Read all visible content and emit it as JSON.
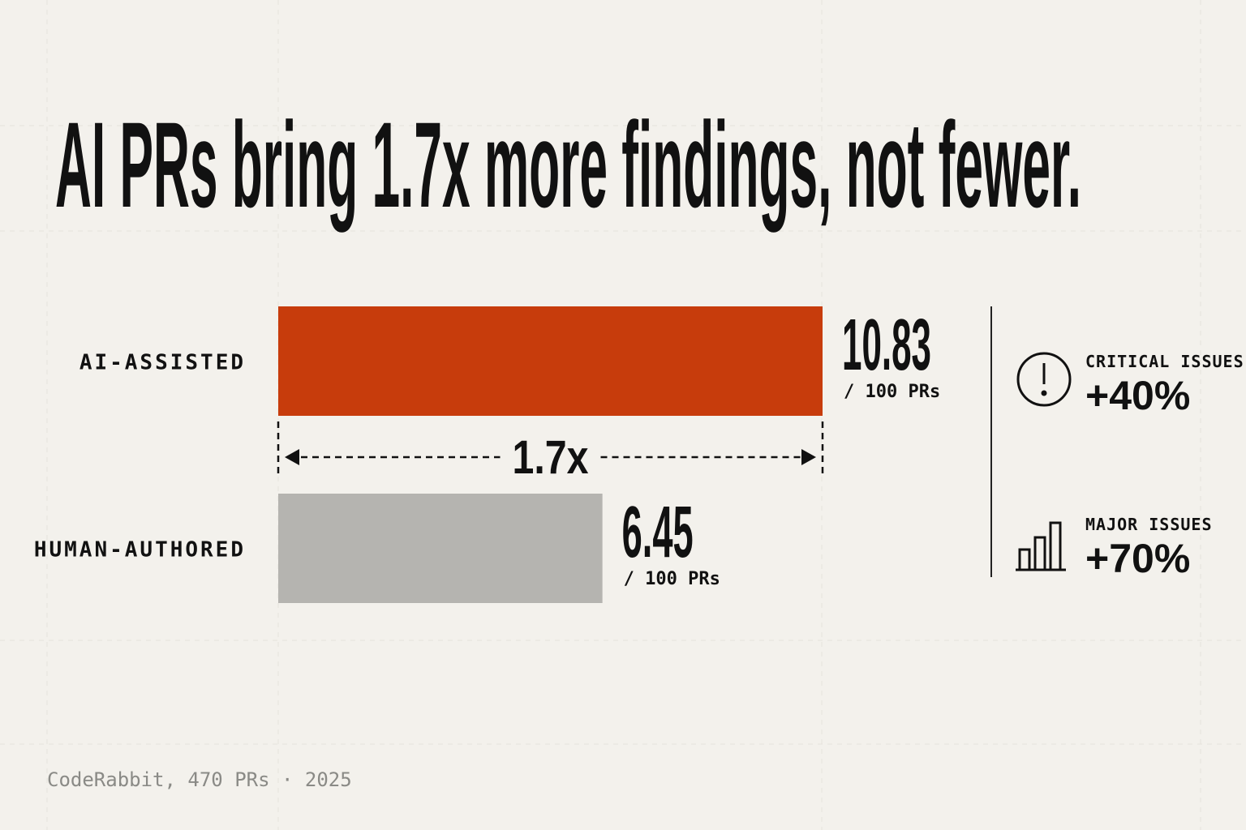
{
  "chart_data": {
    "type": "bar",
    "orientation": "horizontal",
    "title": "AI PRs bring 1.7x more findings, not fewer.",
    "categories": [
      "AI-ASSISTED",
      "HUMAN-AUTHORED"
    ],
    "values": [
      10.83,
      6.45
    ],
    "colors": [
      "#c73c0c",
      "#b5b4b0"
    ],
    "value_unit": "/ 100 PRs",
    "ratio_annotation": "1.7x",
    "callouts": [
      {
        "label": "CRITICAL ISSUES",
        "text": "+40%"
      },
      {
        "label": "MAJOR ISSUES",
        "text": "+70%"
      }
    ],
    "source": "CodeRabbit, 470 PRs · 2025"
  }
}
